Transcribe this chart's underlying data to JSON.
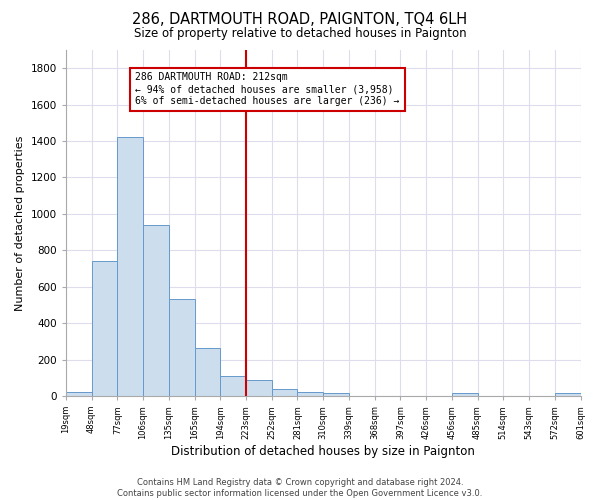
{
  "title": "286, DARTMOUTH ROAD, PAIGNTON, TQ4 6LH",
  "subtitle": "Size of property relative to detached houses in Paignton",
  "xlabel": "Distribution of detached houses by size in Paignton",
  "ylabel": "Number of detached properties",
  "bar_values": [
    20,
    740,
    1420,
    940,
    530,
    265,
    110,
    90,
    40,
    20,
    15,
    0,
    0,
    0,
    0,
    15,
    0,
    0,
    0,
    15
  ],
  "bar_labels": [
    "19sqm",
    "48sqm",
    "77sqm",
    "106sqm",
    "135sqm",
    "165sqm",
    "194sqm",
    "223sqm",
    "252sqm",
    "281sqm",
    "310sqm",
    "339sqm",
    "368sqm",
    "397sqm",
    "426sqm",
    "456sqm",
    "485sqm",
    "514sqm",
    "543sqm",
    "572sqm",
    "601sqm"
  ],
  "bar_color": "#ccdded",
  "bar_edge_color": "#6699cc",
  "vline_color": "#cc0000",
  "annotation_title": "286 DARTMOUTH ROAD: 212sqm",
  "annotation_line1": "← 94% of detached houses are smaller (3,958)",
  "annotation_line2": "6% of semi-detached houses are larger (236) →",
  "annotation_box_color": "#ffffff",
  "annotation_box_edge": "#cc0000",
  "ylim": [
    0,
    1900
  ],
  "yticks": [
    0,
    200,
    400,
    600,
    800,
    1000,
    1200,
    1400,
    1600,
    1800
  ],
  "footer1": "Contains HM Land Registry data © Crown copyright and database right 2024.",
  "footer2": "Contains public sector information licensed under the Open Government Licence v3.0.",
  "bg_color": "#ffffff",
  "plot_bg_color": "#ffffff",
  "grid_color": "#ddddee"
}
